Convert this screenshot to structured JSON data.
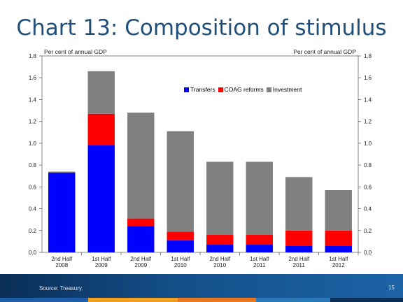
{
  "slide": {
    "title": "Chart 13: Composition of stimulus",
    "source": "Source: Treasury.",
    "page_number": "15"
  },
  "chart_data": {
    "type": "bar",
    "stacked": true,
    "categories": [
      [
        "2nd Half",
        "2008"
      ],
      [
        "1st Half",
        "2009"
      ],
      [
        "2nd Half",
        "2009"
      ],
      [
        "1st Half",
        "2010"
      ],
      [
        "2nd Half",
        "2010"
      ],
      [
        "1st Half",
        "2011"
      ],
      [
        "2nd Half",
        "2011"
      ],
      [
        "1st Half",
        "2012"
      ]
    ],
    "series": [
      {
        "name": "Transfers",
        "color": "#0000ff",
        "values": [
          0.73,
          0.98,
          0.24,
          0.11,
          0.07,
          0.07,
          0.06,
          0.06
        ]
      },
      {
        "name": "COAG reforms",
        "color": "#ff0000",
        "values": [
          0.0,
          0.29,
          0.07,
          0.08,
          0.09,
          0.09,
          0.14,
          0.14
        ]
      },
      {
        "name": "Investment",
        "color": "#808080",
        "values": [
          0.01,
          0.39,
          0.97,
          0.92,
          0.67,
          0.67,
          0.49,
          0.37
        ]
      }
    ],
    "ylabel_left": "Per cent of annual GDP",
    "ylabel_right": "Per cent of annual GDP",
    "ylim": [
      0,
      1.8
    ],
    "yticks": [
      "0.0",
      "0.2",
      "0.4",
      "0.6",
      "0.8",
      "1.0",
      "1.2",
      "1.4",
      "1.6",
      "1.8"
    ],
    "legend_position": "top-right",
    "grid": false
  }
}
